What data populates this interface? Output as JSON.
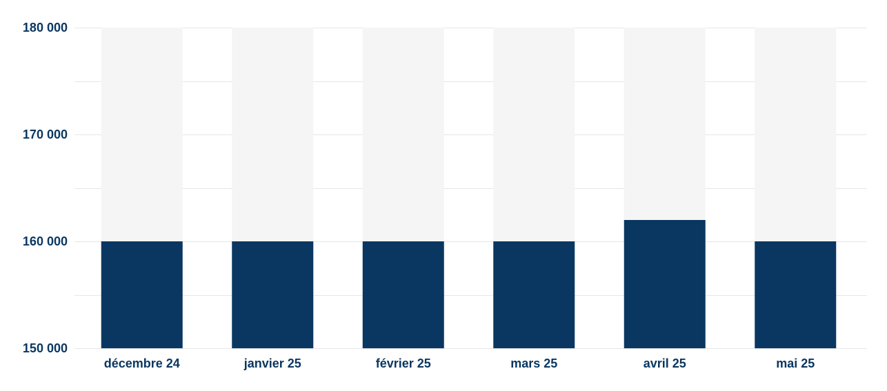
{
  "chart_data": {
    "type": "bar",
    "categories": [
      "décembre 24",
      "janvier 25",
      "février 25",
      "mars 25",
      "avril 25",
      "mai 25"
    ],
    "values": [
      160000,
      160000,
      160000,
      160000,
      162000,
      160000
    ],
    "y_tick_labels": [
      "180 000",
      "170 000",
      "160 000",
      "150 000"
    ],
    "y_ticks": [
      180000,
      170000,
      160000,
      150000
    ],
    "ylim": [
      150000,
      180000
    ],
    "title": "",
    "xlabel": "",
    "ylabel": "",
    "grid": true,
    "colors": {
      "bar": "#0a3761",
      "bar_background": "#f5f5f5",
      "text": "#0a3761",
      "grid": "#e6e6e6"
    }
  }
}
